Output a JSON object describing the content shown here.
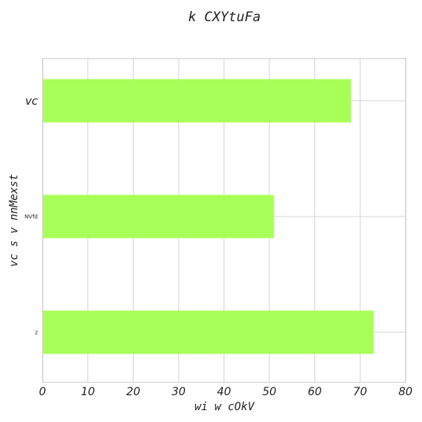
{
  "chart_data": {
    "type": "bar",
    "orientation": "horizontal",
    "title": "k CXYtuFa",
    "xlabel": "wi w cOkV",
    "ylabel": "vc s v nnMexst",
    "categories": [
      "vc",
      "NVfd",
      "z"
    ],
    "values": [
      68,
      51,
      73
    ],
    "xlim": [
      0,
      80
    ],
    "xticks": [
      "0",
      "10",
      "20",
      "30",
      "40",
      "50",
      "60",
      "70",
      "80"
    ],
    "grid": true,
    "bar_color": "#a8ff57"
  }
}
